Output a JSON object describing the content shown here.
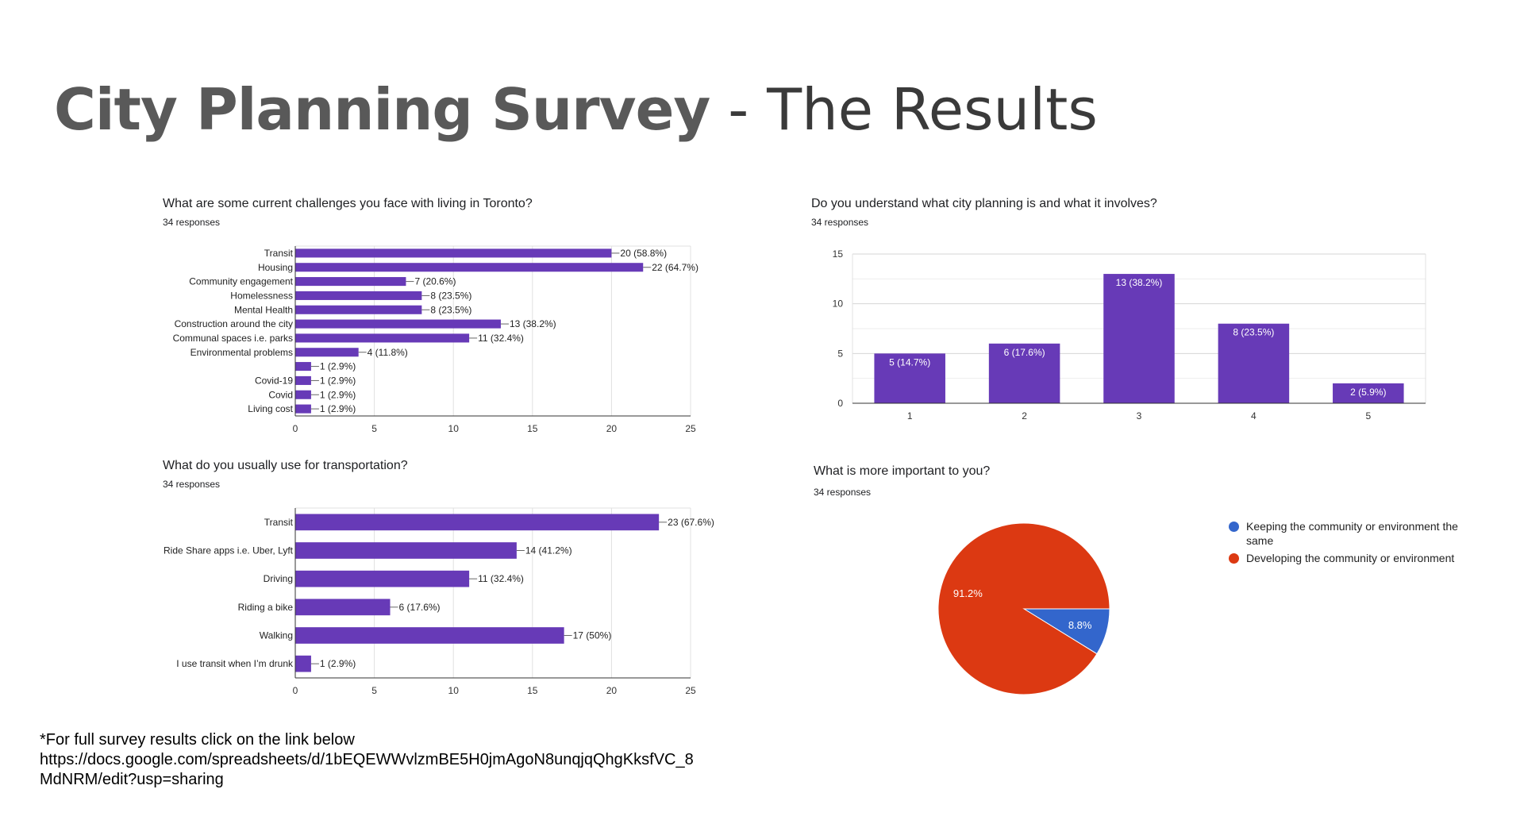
{
  "slide": {
    "title_bold": "City Planning Survey",
    "title_rest": " - The Results"
  },
  "footer": {
    "line1": "*For full survey results click on the link below",
    "line2": "https://docs.google.com/spreadsheets/d/1bEQEWWvlzmBE5H0jmAgoN8unqjqQhgKksfVC_8",
    "line3": "MdNRM/edit?usp=sharing"
  },
  "colors": {
    "bar": "#673ab7",
    "pie_red": "#dc3912",
    "pie_blue": "#3366cc",
    "grid": "#e0e0e0"
  },
  "chart_data": [
    {
      "type": "bar",
      "orientation": "horizontal",
      "title": "What are some current challenges you face with living in Toronto?",
      "subtitle": "34 responses",
      "categories": [
        "Transit",
        "Housing",
        "Community engagement",
        "Homelessness",
        "Mental Health",
        "Construction around the city",
        "Communal spaces i.e. parks",
        "Environmental problems",
        "",
        "Covid-19",
        "Covid",
        "Living cost"
      ],
      "values": [
        20,
        22,
        7,
        8,
        8,
        13,
        11,
        4,
        1,
        1,
        1,
        1
      ],
      "data_labels": [
        "20 (58.8%)",
        "22 (64.7%)",
        "7 (20.6%)",
        "8 (23.5%)",
        "8 (23.5%)",
        "13 (38.2%)",
        "11 (32.4%)",
        "4 (11.8%)",
        "1 (2.9%)",
        "1 (2.9%)",
        "1 (2.9%)",
        "1 (2.9%)"
      ],
      "xlim": [
        0,
        25
      ],
      "xticks": [
        "0",
        "5",
        "10",
        "15",
        "20",
        "25"
      ],
      "grid": true
    },
    {
      "type": "bar",
      "orientation": "vertical",
      "title": "Do you understand what city planning is and what it involves?",
      "subtitle": "34 responses",
      "categories": [
        "1",
        "2",
        "3",
        "4",
        "5"
      ],
      "values": [
        5,
        6,
        13,
        8,
        2
      ],
      "data_labels": [
        "5 (14.7%)",
        "6 (17.6%)",
        "13 (38.2%)",
        "8 (23.5%)",
        "2 (5.9%)"
      ],
      "ylim": [
        0,
        15
      ],
      "yticks": [
        "0",
        "5",
        "10",
        "15"
      ],
      "grid": true
    },
    {
      "type": "bar",
      "orientation": "horizontal",
      "title": "What do you usually use for transportation?",
      "subtitle": "34 responses",
      "categories": [
        "Transit",
        "Ride Share apps i.e. Uber, Lyft",
        "Driving",
        "Riding a bike",
        "Walking",
        "I use transit when I’m drunk"
      ],
      "values": [
        23,
        14,
        11,
        6,
        17,
        1
      ],
      "data_labels": [
        "23 (67.6%)",
        "14 (41.2%)",
        "11 (32.4%)",
        "6 (17.6%)",
        "17 (50%)",
        "1 (2.9%)"
      ],
      "xlim": [
        0,
        25
      ],
      "xticks": [
        "0",
        "5",
        "10",
        "15",
        "20",
        "25"
      ],
      "grid": true
    },
    {
      "type": "pie",
      "title": "What is more important to you?",
      "subtitle": "34 responses",
      "slices": [
        {
          "label": "Keeping the community or environment the same",
          "value": 8.8,
          "display": "8.8%",
          "color": "#3366cc"
        },
        {
          "label": "Developing the community or environment",
          "value": 91.2,
          "display": "91.2%",
          "color": "#dc3912"
        }
      ],
      "legend_position": "right"
    }
  ]
}
